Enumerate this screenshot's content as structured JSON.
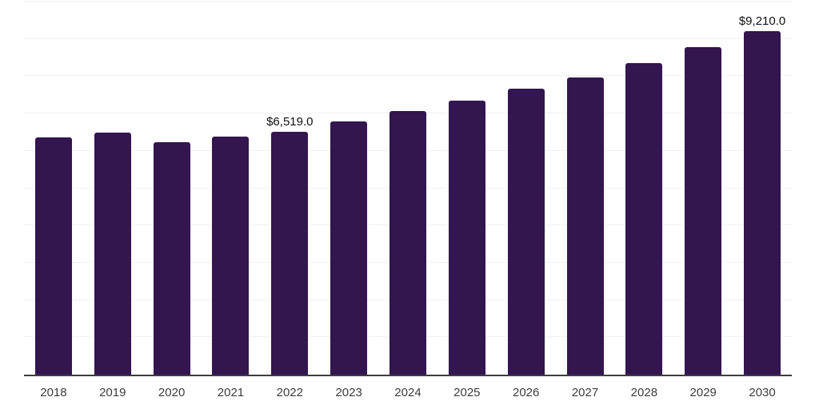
{
  "colors": {
    "bar": "#331550",
    "axis_line": "#3d3d3d",
    "gridline": "#f1f1f1",
    "value_label": "#101010",
    "tick_label": "#3c3c3c",
    "background": "#ffffff"
  },
  "chart_data": {
    "type": "bar",
    "categories": [
      "2018",
      "2019",
      "2020",
      "2021",
      "2022",
      "2023",
      "2024",
      "2025",
      "2026",
      "2027",
      "2028",
      "2029",
      "2030"
    ],
    "values": [
      6370,
      6490,
      6230,
      6390,
      6519.0,
      6790,
      7060,
      7340,
      7660,
      7970,
      8360,
      8790,
      9210.0
    ],
    "data_labels": [
      "",
      "",
      "",
      "",
      "$6,519.0",
      "",
      "",
      "",
      "",
      "",
      "",
      "",
      "$9,210.0"
    ],
    "title": "",
    "xlabel": "",
    "ylabel": "",
    "ylim": [
      0,
      10000
    ],
    "gridline_interval": 1000,
    "grid": "horizontal",
    "legend": "none",
    "bar_color": "#331550"
  }
}
